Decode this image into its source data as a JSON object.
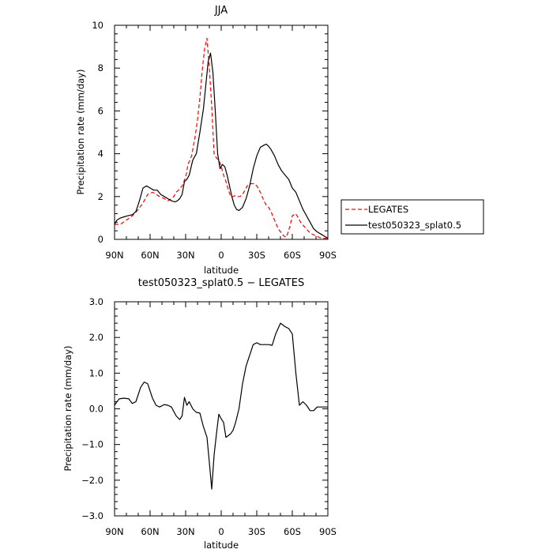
{
  "chart_data": [
    {
      "type": "line",
      "title": "JJA",
      "xlabel": "latitude",
      "ylabel": "Precipitation rate (mm/day)",
      "xlim": [
        90,
        -90
      ],
      "ylim": [
        0,
        10
      ],
      "xtick_values": [
        90,
        60,
        30,
        0,
        -30,
        -60,
        -90
      ],
      "xtick_labels": [
        "90N",
        "60N",
        "30N",
        "0",
        "30S",
        "60S",
        "90S"
      ],
      "ytick_values": [
        0,
        2,
        4,
        6,
        8,
        10
      ],
      "ytick_labels": [
        "0",
        "2",
        "4",
        "6",
        "8",
        "10"
      ],
      "legend_position": "right",
      "series": [
        {
          "name": "LEGATES",
          "color": "#ff0000",
          "dash": true,
          "x": [
            90,
            85,
            80,
            75,
            70,
            66,
            62,
            58,
            55,
            52,
            48,
            45,
            42,
            40,
            38,
            36,
            33,
            30,
            28,
            25,
            22,
            20,
            18,
            16,
            14,
            12,
            10,
            8,
            6,
            4,
            2,
            0,
            -2,
            -4,
            -6,
            -8,
            -10,
            -12,
            -14,
            -16,
            -18,
            -20,
            -22,
            -25,
            -28,
            -30,
            -33,
            -36,
            -38,
            -40,
            -42,
            -45,
            -48,
            -50,
            -53,
            -55,
            -58,
            -60,
            -63,
            -65,
            -67,
            -70,
            -75,
            -80,
            -85,
            -90
          ],
          "y": [
            0.7,
            0.7,
            0.9,
            1.1,
            1.4,
            1.7,
            2.1,
            2.2,
            2.1,
            2.0,
            1.9,
            1.8,
            1.9,
            2.0,
            2.2,
            2.3,
            2.5,
            2.9,
            3.5,
            3.9,
            4.8,
            5.6,
            6.6,
            7.9,
            8.9,
            9.4,
            8.0,
            6.2,
            4.0,
            3.8,
            3.7,
            3.4,
            3.0,
            2.7,
            2.3,
            2.0,
            2.0,
            2.05,
            2.0,
            2.0,
            2.1,
            2.3,
            2.5,
            2.6,
            2.6,
            2.5,
            2.2,
            1.8,
            1.6,
            1.5,
            1.3,
            0.9,
            0.5,
            0.35,
            0.15,
            0.1,
            0.6,
            1.1,
            1.2,
            1.0,
            0.8,
            0.6,
            0.3,
            0.15,
            0.05,
            0.05
          ]
        },
        {
          "name": "test050323_splat0.5",
          "color": "#000000",
          "dash": false,
          "x": [
            90,
            88,
            85,
            82,
            79,
            75,
            72,
            69,
            66,
            63,
            60,
            57,
            54,
            51,
            48,
            45,
            42,
            39,
            37,
            35,
            33,
            31,
            29,
            27,
            24,
            21,
            18,
            15,
            13,
            11,
            9,
            7,
            5,
            3,
            1,
            -1,
            -3,
            -5,
            -7,
            -9,
            -11,
            -13,
            -15,
            -18,
            -21,
            -24,
            -27,
            -30,
            -33,
            -36,
            -38,
            -40,
            -42,
            -45,
            -48,
            -51,
            -54,
            -57,
            -60,
            -63,
            -66,
            -69,
            -72,
            -75,
            -78,
            -81,
            -84,
            -87,
            -90
          ],
          "y": [
            0.7,
            0.9,
            1.0,
            1.05,
            1.1,
            1.15,
            1.3,
            1.8,
            2.4,
            2.5,
            2.4,
            2.3,
            2.3,
            2.1,
            2.0,
            1.9,
            1.8,
            1.75,
            1.8,
            1.9,
            2.1,
            2.7,
            2.8,
            3.0,
            3.7,
            4.0,
            5.0,
            6.1,
            7.2,
            8.3,
            8.7,
            7.8,
            6.0,
            4.0,
            3.3,
            3.5,
            3.4,
            3.0,
            2.5,
            2.0,
            1.6,
            1.4,
            1.35,
            1.5,
            1.9,
            2.5,
            3.3,
            3.9,
            4.3,
            4.4,
            4.45,
            4.35,
            4.2,
            3.9,
            3.5,
            3.2,
            3.0,
            2.8,
            2.4,
            2.2,
            1.8,
            1.4,
            1.1,
            0.8,
            0.5,
            0.35,
            0.25,
            0.15,
            0.05
          ]
        }
      ]
    },
    {
      "type": "line",
      "title": "test050323_splat0.5 − LEGATES",
      "xlabel": "latitude",
      "ylabel": "Precipitation rate (mm/day)",
      "xlim": [
        90,
        -90
      ],
      "ylim": [
        -3.0,
        3.0
      ],
      "xtick_values": [
        90,
        60,
        30,
        0,
        -30,
        -60,
        -90
      ],
      "xtick_labels": [
        "90N",
        "60N",
        "30N",
        "0",
        "30S",
        "60S",
        "90S"
      ],
      "ytick_values": [
        3,
        2,
        1,
        0,
        -1,
        -2,
        -3
      ],
      "ytick_labels": [
        "3.0",
        "2.0",
        "1.0",
        "0.0",
        "−1.0",
        "−2.0",
        "−3.0"
      ],
      "series": [
        {
          "name": "",
          "color": "#000000",
          "dash": false,
          "x": [
            90,
            88,
            86,
            82,
            78,
            75,
            72,
            68,
            65,
            62,
            58,
            55,
            52,
            48,
            45,
            42,
            38,
            35,
            33,
            31,
            29,
            27,
            24,
            21,
            18,
            15,
            12,
            10,
            8,
            6,
            4,
            2,
            0,
            -2,
            -4,
            -6,
            -8,
            -10,
            -12,
            -15,
            -18,
            -21,
            -24,
            -27,
            -30,
            -33,
            -36,
            -40,
            -43,
            -46,
            -50,
            -54,
            -57,
            -60,
            -63,
            -66,
            -69,
            -72,
            -75,
            -78,
            -81,
            -84,
            -87,
            -90
          ],
          "y": [
            0.1,
            0.2,
            0.28,
            0.3,
            0.28,
            0.15,
            0.2,
            0.6,
            0.75,
            0.7,
            0.3,
            0.1,
            0.05,
            0.12,
            0.1,
            0.05,
            -0.2,
            -0.3,
            -0.2,
            0.32,
            0.1,
            0.2,
            0.0,
            -0.1,
            -0.12,
            -0.5,
            -0.8,
            -1.5,
            -2.25,
            -1.3,
            -0.7,
            -0.15,
            -0.28,
            -0.38,
            -0.8,
            -0.75,
            -0.7,
            -0.6,
            -0.4,
            0.0,
            0.7,
            1.2,
            1.5,
            1.8,
            1.85,
            1.8,
            1.8,
            1.8,
            1.78,
            2.1,
            2.4,
            2.3,
            2.25,
            2.1,
            1.0,
            0.1,
            0.2,
            0.1,
            -0.05,
            -0.05,
            0.05,
            0.05,
            0.05,
            0.05
          ]
        }
      ]
    }
  ]
}
